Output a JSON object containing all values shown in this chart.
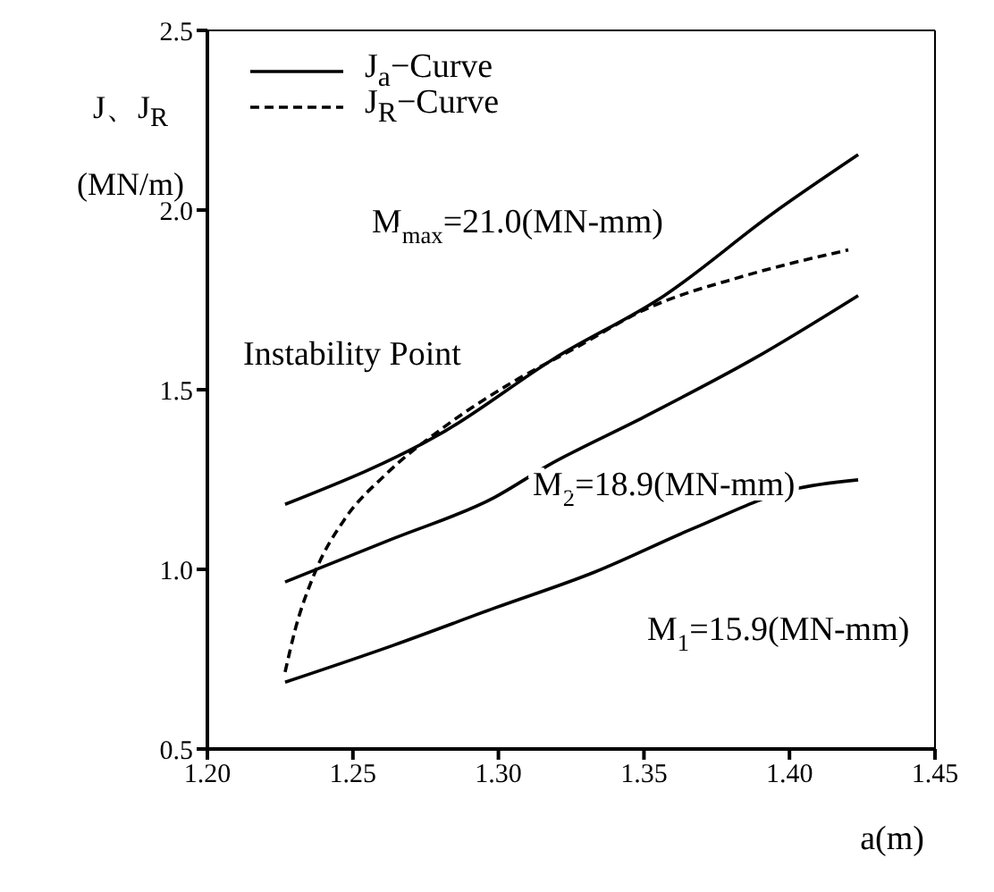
{
  "chart_data": {
    "type": "line",
    "xlabel": "a(m)",
    "ylabel": "J、J$_{R}$ (MN/m)",
    "xlim": [
      1.2,
      1.45
    ],
    "xticks": [
      {
        "value": 1.2,
        "label": "1.20"
      },
      {
        "value": 1.25,
        "label": "1.25"
      },
      {
        "value": 1.3,
        "label": "1.30"
      },
      {
        "value": 1.35,
        "label": "1.35"
      },
      {
        "value": 1.4,
        "label": "1.40"
      },
      {
        "value": 1.45,
        "label": "1.45"
      }
    ],
    "ylim": [
      0.5,
      2.5
    ],
    "yticks": [
      0.5,
      {
        "value": 1,
        "label": "1.0"
      },
      1.5,
      {
        "value": 2,
        "label": "2.0"
      },
      2.5
    ],
    "legend": "top left",
    "series": [
      {
        "name": "J$_{a}$−Curve",
        "color": "#000000",
        "line_style": "solid",
        "x": [
          1.2267,
          1.2815,
          1.319,
          1.357,
          1.3945,
          1.4236
        ],
        "values": [
          1.181,
          1.384,
          1.586,
          1.762,
          1.992,
          2.154
        ]
      },
      {
        "color": "#000000",
        "line_style": "solid",
        "x": [
          1.2267,
          1.264,
          1.2986,
          1.317,
          1.35,
          1.3877,
          1.4236
        ],
        "values": [
          0.965,
          1.086,
          1.2,
          1.289,
          1.424,
          1.586,
          1.762
        ]
      },
      {
        "color": "#000000",
        "line_style": "solid",
        "x": [
          1.2267,
          1.264,
          1.2986,
          1.3329,
          1.367,
          1.401,
          1.4236
        ],
        "values": [
          0.686,
          0.789,
          0.892,
          0.992,
          1.114,
          1.222,
          1.249
        ]
      },
      {
        "name": "J$_{R}$−Curve",
        "color": "#000000",
        "line_style": "dashed",
        "x": [
          1.2267,
          1.2301,
          1.237,
          1.2473,
          1.261,
          1.2815,
          1.3055,
          1.326,
          1.35,
          1.3842,
          1.4202
        ],
        "values": [
          0.714,
          0.83,
          0.992,
          1.141,
          1.262,
          1.397,
          1.524,
          1.614,
          1.722,
          1.816,
          1.889
        ]
      }
    ],
    "annotations": [
      "M$_{max}$=21.0(MN-mm)",
      "Instability Point",
      "M$_{2}$=18.9(MN-mm)",
      "M$_{1}$=15.9(MN-mm)"
    ]
  }
}
